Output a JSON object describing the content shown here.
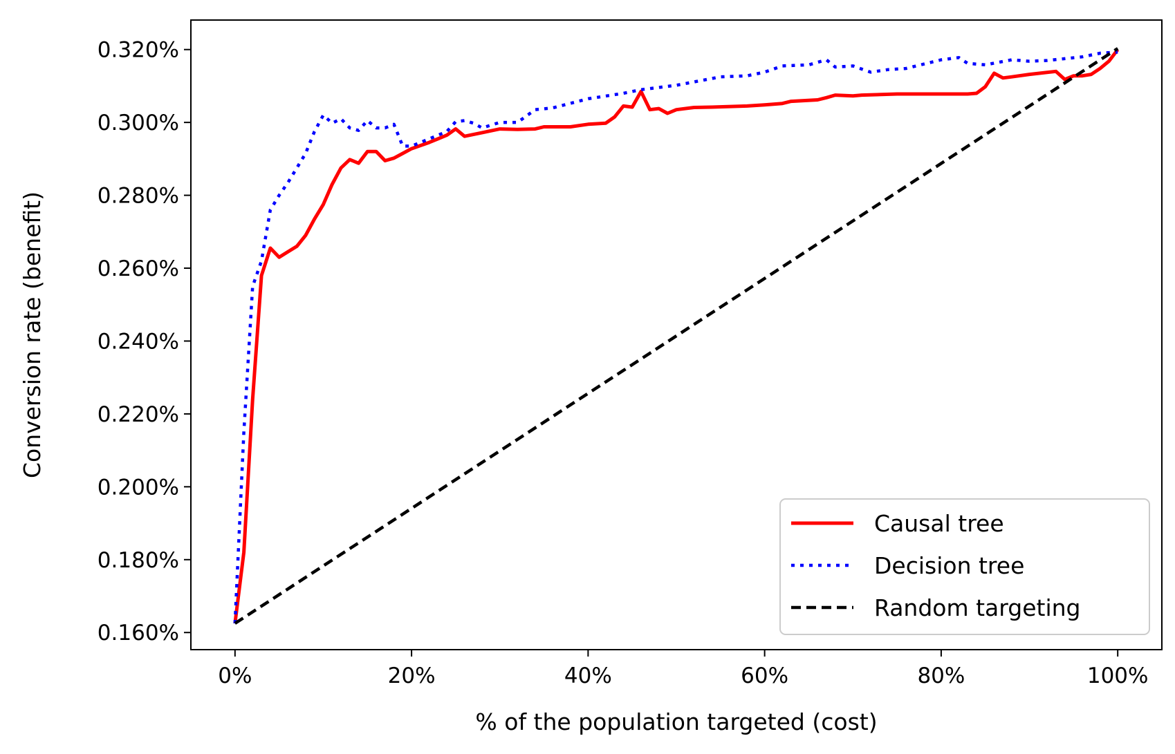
{
  "chart_data": {
    "type": "line",
    "title": "",
    "xlabel": "% of the population targeted (cost)",
    "ylabel": "Conversion rate (benefit)",
    "xlim": [
      -5,
      105
    ],
    "ylim": [
      0.1553,
      0.3281
    ],
    "x_ticks": [
      0,
      20,
      40,
      60,
      80,
      100
    ],
    "x_tick_labels": [
      "0%",
      "20%",
      "40%",
      "60%",
      "80%",
      "100%"
    ],
    "y_ticks": [
      0.16,
      0.18,
      0.2,
      0.22,
      0.24,
      0.26,
      0.28,
      0.3,
      0.32
    ],
    "y_tick_labels": [
      "0.160%",
      "0.180%",
      "0.200%",
      "0.220%",
      "0.240%",
      "0.260%",
      "0.280%",
      "0.300%",
      "0.320%"
    ],
    "grid": false,
    "legend_position": "lower-right",
    "series": [
      {
        "name": "Causal tree",
        "color": "#ff0000",
        "style": "solid",
        "x": [
          0,
          1,
          2,
          3,
          4,
          5,
          6,
          7,
          8,
          9,
          10,
          11,
          12,
          13,
          14,
          15,
          16,
          17,
          18,
          19,
          20,
          22,
          24,
          25,
          26,
          28,
          30,
          32,
          34,
          35,
          38,
          40,
          42,
          43,
          44,
          45,
          46,
          47,
          48,
          49,
          50,
          52,
          54,
          58,
          60,
          62,
          63,
          66,
          67,
          68,
          70,
          71,
          75,
          80,
          83,
          84,
          85,
          86,
          87,
          88,
          90,
          93,
          94,
          95,
          96,
          97,
          98,
          99,
          100
        ],
        "y": [
          0.1625,
          0.182,
          0.224,
          0.258,
          0.2655,
          0.263,
          0.2645,
          0.266,
          0.269,
          0.2735,
          0.2775,
          0.283,
          0.2875,
          0.2898,
          0.2888,
          0.292,
          0.292,
          0.2895,
          0.2902,
          0.2915,
          0.2928,
          0.2945,
          0.2965,
          0.2982,
          0.2962,
          0.2972,
          0.2982,
          0.2981,
          0.2982,
          0.2988,
          0.2988,
          0.2995,
          0.2998,
          0.3015,
          0.3045,
          0.3042,
          0.3085,
          0.3035,
          0.3038,
          0.3025,
          0.3035,
          0.3041,
          0.3042,
          0.3045,
          0.3048,
          0.3052,
          0.3058,
          0.3062,
          0.3068,
          0.3075,
          0.3073,
          0.3075,
          0.3078,
          0.3078,
          0.3078,
          0.308,
          0.3098,
          0.3135,
          0.3122,
          0.3125,
          0.3132,
          0.314,
          0.3118,
          0.3128,
          0.3128,
          0.3132,
          0.3148,
          0.3168,
          0.32
        ]
      },
      {
        "name": "Decision tree",
        "color": "#0000ff",
        "style": "dotted",
        "x": [
          0,
          1,
          2,
          3,
          4,
          5,
          6,
          7,
          8,
          9,
          10,
          11,
          12,
          13,
          14,
          15,
          16,
          17,
          18,
          19,
          20,
          22,
          24,
          25,
          26,
          27,
          28,
          30,
          32,
          34,
          36,
          40,
          44,
          46,
          50,
          55,
          58,
          60,
          62,
          65,
          67,
          68,
          70,
          72,
          74,
          76,
          78,
          80,
          82,
          83,
          85,
          88,
          90,
          92,
          94,
          96,
          98,
          100
        ],
        "y": [
          0.1625,
          0.215,
          0.255,
          0.262,
          0.276,
          0.28,
          0.2835,
          0.2875,
          0.2915,
          0.2975,
          0.302,
          0.2998,
          0.301,
          0.2985,
          0.2978,
          0.3005,
          0.2985,
          0.2985,
          0.2995,
          0.2935,
          0.2935,
          0.2955,
          0.2975,
          0.3002,
          0.3005,
          0.2998,
          0.2985,
          0.3,
          0.3,
          0.3035,
          0.304,
          0.3065,
          0.308,
          0.309,
          0.3102,
          0.3125,
          0.3128,
          0.3138,
          0.3155,
          0.3158,
          0.3172,
          0.3152,
          0.3155,
          0.3138,
          0.3145,
          0.3148,
          0.316,
          0.3172,
          0.3178,
          0.3162,
          0.3158,
          0.3172,
          0.3168,
          0.317,
          0.3175,
          0.318,
          0.319,
          0.3193
        ]
      },
      {
        "name": "Random targeting",
        "color": "#000000",
        "style": "dashed",
        "x": [
          0,
          100
        ],
        "y": [
          0.1625,
          0.3203
        ]
      }
    ]
  }
}
